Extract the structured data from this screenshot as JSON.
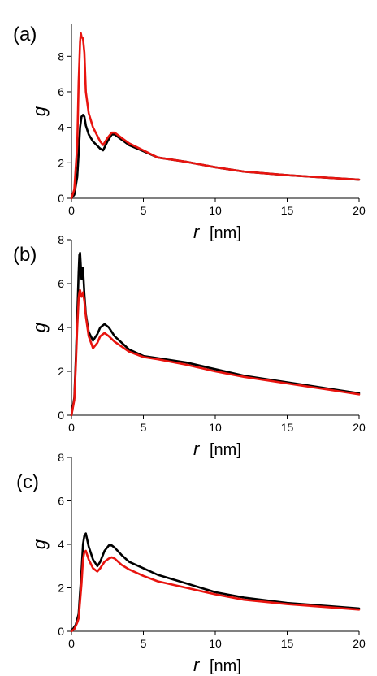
{
  "chart_data": [
    {
      "type": "line",
      "panel_label": "(a)",
      "xlabel": "r",
      "xunit": "[nm]",
      "ylabel": "g",
      "xlim": [
        0,
        20
      ],
      "ylim": [
        0,
        9.8
      ],
      "xticks": [
        "0",
        "5",
        "10",
        "15",
        "20"
      ],
      "yticks": [
        "0",
        "2",
        "4",
        "6",
        "8"
      ],
      "grid": false,
      "series": [
        {
          "color": "#000000",
          "x": [
            0,
            0.2,
            0.4,
            0.5,
            0.6,
            0.7,
            0.8,
            0.9,
            1.0,
            1.2,
            1.5,
            2.0,
            2.2,
            2.5,
            2.8,
            3.0,
            3.5,
            4.0,
            5.0,
            6.0,
            8.0,
            10.0,
            12.0,
            15.0,
            18.0,
            20.0
          ],
          "y": [
            0,
            0.2,
            1.2,
            2.5,
            4.0,
            4.6,
            4.7,
            4.6,
            4.1,
            3.6,
            3.2,
            2.8,
            2.7,
            3.2,
            3.6,
            3.6,
            3.3,
            3.0,
            2.65,
            2.3,
            2.05,
            1.75,
            1.5,
            1.3,
            1.15,
            1.05
          ]
        },
        {
          "color": "#e8140f",
          "x": [
            0,
            0.2,
            0.4,
            0.5,
            0.6,
            0.65,
            0.7,
            0.8,
            0.9,
            1.0,
            1.2,
            1.5,
            2.0,
            2.2,
            2.5,
            2.8,
            3.0,
            3.5,
            4.0,
            5.0,
            6.0,
            8.0,
            10.0,
            12.0,
            15.0,
            18.0,
            20.0
          ],
          "y": [
            0,
            0.5,
            3.0,
            6.5,
            8.8,
            9.3,
            9.1,
            9.0,
            8.2,
            6.0,
            4.8,
            4.0,
            3.2,
            3.0,
            3.4,
            3.7,
            3.7,
            3.4,
            3.1,
            2.7,
            2.3,
            2.05,
            1.75,
            1.5,
            1.3,
            1.15,
            1.05
          ]
        }
      ]
    },
    {
      "type": "line",
      "panel_label": "(b)",
      "xlabel": "r",
      "xunit": "[nm]",
      "ylabel": "g",
      "xlim": [
        0,
        20
      ],
      "ylim": [
        0,
        8
      ],
      "xticks": [
        "0",
        "5",
        "10",
        "15",
        "20"
      ],
      "yticks": [
        "0",
        "2",
        "4",
        "6",
        "8"
      ],
      "grid": false,
      "series": [
        {
          "color": "#000000",
          "x": [
            0,
            0.2,
            0.3,
            0.4,
            0.5,
            0.55,
            0.6,
            0.7,
            0.75,
            0.8,
            0.9,
            1.0,
            1.2,
            1.5,
            1.8,
            2.0,
            2.3,
            2.6,
            3.0,
            4.0,
            5.0,
            6.0,
            8.0,
            10.0,
            12.0,
            15.0,
            18.0,
            20.0
          ],
          "y": [
            0,
            0.8,
            2.5,
            4.5,
            6.5,
            7.3,
            7.4,
            6.2,
            6.7,
            6.7,
            5.5,
            4.6,
            3.8,
            3.4,
            3.7,
            4.0,
            4.15,
            4.0,
            3.6,
            3.0,
            2.7,
            2.6,
            2.4,
            2.1,
            1.8,
            1.5,
            1.2,
            1.0
          ]
        },
        {
          "color": "#e8140f",
          "x": [
            0,
            0.2,
            0.3,
            0.4,
            0.5,
            0.55,
            0.6,
            0.7,
            0.8,
            0.9,
            1.0,
            1.2,
            1.5,
            1.8,
            2.0,
            2.3,
            2.6,
            3.0,
            4.0,
            5.0,
            6.0,
            8.0,
            10.0,
            12.0,
            15.0,
            18.0,
            20.0
          ],
          "y": [
            0,
            0.7,
            2.2,
            4.0,
            5.3,
            5.6,
            5.7,
            5.4,
            5.6,
            5.2,
            4.5,
            3.6,
            3.05,
            3.3,
            3.6,
            3.75,
            3.6,
            3.35,
            2.9,
            2.65,
            2.55,
            2.3,
            2.0,
            1.75,
            1.45,
            1.15,
            0.95
          ]
        }
      ]
    },
    {
      "type": "line",
      "panel_label": "(c)",
      "xlabel": "r",
      "xunit": "[nm]",
      "ylabel": "g",
      "xlim": [
        0,
        20
      ],
      "ylim": [
        0,
        8
      ],
      "xticks": [
        "0",
        "5",
        "10",
        "15",
        "20"
      ],
      "yticks": [
        "0",
        "2",
        "4",
        "6",
        "8"
      ],
      "grid": false,
      "series": [
        {
          "color": "#000000",
          "x": [
            0,
            0.2,
            0.3,
            0.5,
            0.7,
            0.8,
            0.9,
            1.0,
            1.2,
            1.5,
            1.8,
            2.0,
            2.3,
            2.6,
            2.8,
            3.0,
            3.5,
            4.0,
            5.0,
            6.0,
            8.0,
            10.0,
            12.0,
            15.0,
            18.0,
            20.0
          ],
          "y": [
            0,
            0.2,
            0.3,
            0.8,
            2.8,
            4.0,
            4.4,
            4.5,
            3.9,
            3.3,
            3.0,
            3.2,
            3.7,
            3.95,
            3.95,
            3.85,
            3.5,
            3.2,
            2.9,
            2.6,
            2.2,
            1.8,
            1.55,
            1.3,
            1.15,
            1.05
          ]
        },
        {
          "color": "#e8140f",
          "x": [
            0,
            0.2,
            0.4,
            0.5,
            0.7,
            0.8,
            0.9,
            1.0,
            1.2,
            1.5,
            1.8,
            2.0,
            2.3,
            2.6,
            2.8,
            3.0,
            3.5,
            4.0,
            5.0,
            6.0,
            8.0,
            10.0,
            12.0,
            15.0,
            18.0,
            20.0
          ],
          "y": [
            0,
            0.1,
            0.4,
            0.6,
            2.2,
            3.3,
            3.65,
            3.7,
            3.3,
            2.9,
            2.75,
            2.9,
            3.2,
            3.35,
            3.4,
            3.35,
            3.05,
            2.85,
            2.55,
            2.3,
            2.0,
            1.7,
            1.45,
            1.25,
            1.1,
            1.0
          ]
        }
      ]
    }
  ]
}
